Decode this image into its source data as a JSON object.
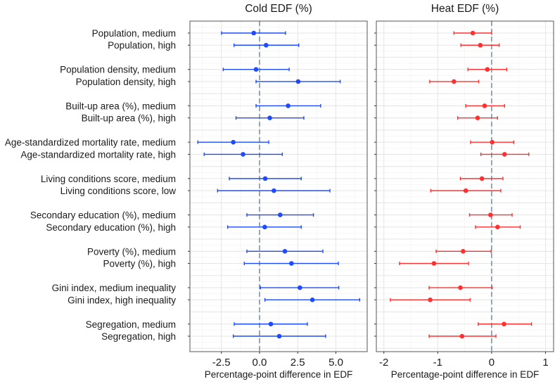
{
  "chart_data": {
    "type": "forest",
    "xlabel": "Percentage-point difference in EDF",
    "categories": [
      "Population, medium",
      "Population, high",
      "Population density, medium",
      "Population density, high",
      "Built-up area (%), medium",
      "Built-up area (%), high",
      "Age-standardized mortality rate, medium",
      "Age-standardized mortality rate, high",
      "Living conditions score, medium",
      "Living conditions score, low",
      "Secondary education (%), medium",
      "Secondary education (%), high",
      "Poverty (%), medium",
      "Poverty (%), high",
      "Gini index, medium inequality",
      "Gini index, high inequality",
      "Segregation, medium",
      "Segregation, high"
    ],
    "panels": [
      {
        "title": "Cold EDF (%)",
        "color": "#1e4bff",
        "xlim": [
          -4.56,
          7.05
        ],
        "ticks": [
          -2.5,
          0,
          2.5,
          5
        ],
        "tick_labels": [
          "-2.5",
          "0.0",
          "2.5",
          "5.0"
        ],
        "reference_line": 0,
        "estimate": [
          -0.38,
          0.43,
          -0.23,
          2.53,
          1.87,
          0.67,
          -1.72,
          -1.08,
          0.37,
          0.94,
          1.35,
          0.34,
          1.66,
          2.09,
          2.64,
          3.46,
          0.74,
          1.29
        ],
        "lower": [
          -2.49,
          -1.67,
          -2.38,
          -0.23,
          -0.23,
          -1.54,
          -4.04,
          -3.63,
          -1.98,
          -2.75,
          -0.83,
          -2.09,
          -0.83,
          -1.0,
          0.06,
          0.35,
          -1.66,
          -1.72
        ],
        "upper": [
          1.7,
          2.57,
          1.94,
          5.28,
          4.0,
          2.9,
          0.6,
          1.49,
          2.73,
          4.61,
          3.53,
          2.73,
          4.15,
          5.16,
          5.19,
          6.56,
          3.13,
          4.33
        ]
      },
      {
        "title": "Heat EDF (%)",
        "color": "#ff3030",
        "xlim": [
          -2.14,
          1.15
        ],
        "ticks": [
          -2,
          -1,
          0,
          1
        ],
        "tick_labels": [
          "-2",
          "-1",
          "0",
          "1"
        ],
        "reference_line": 0,
        "estimate": [
          -0.35,
          -0.21,
          -0.08,
          -0.7,
          -0.13,
          -0.26,
          0.01,
          0.24,
          -0.18,
          -0.48,
          -0.02,
          0.11,
          -0.53,
          -1.07,
          -0.58,
          -1.14,
          0.23,
          -0.55
        ],
        "lower": [
          -0.7,
          -0.57,
          -0.44,
          -1.15,
          -0.48,
          -0.63,
          -0.39,
          -0.2,
          -0.58,
          -1.13,
          -0.41,
          -0.3,
          -1.03,
          -1.71,
          -1.16,
          -1.88,
          -0.25,
          -1.16
        ],
        "upper": [
          0.0,
          0.14,
          0.28,
          -0.24,
          0.24,
          0.11,
          0.41,
          0.69,
          0.21,
          0.17,
          0.38,
          0.53,
          -0.01,
          -0.43,
          0.01,
          -0.4,
          0.74,
          0.08
        ]
      }
    ]
  }
}
